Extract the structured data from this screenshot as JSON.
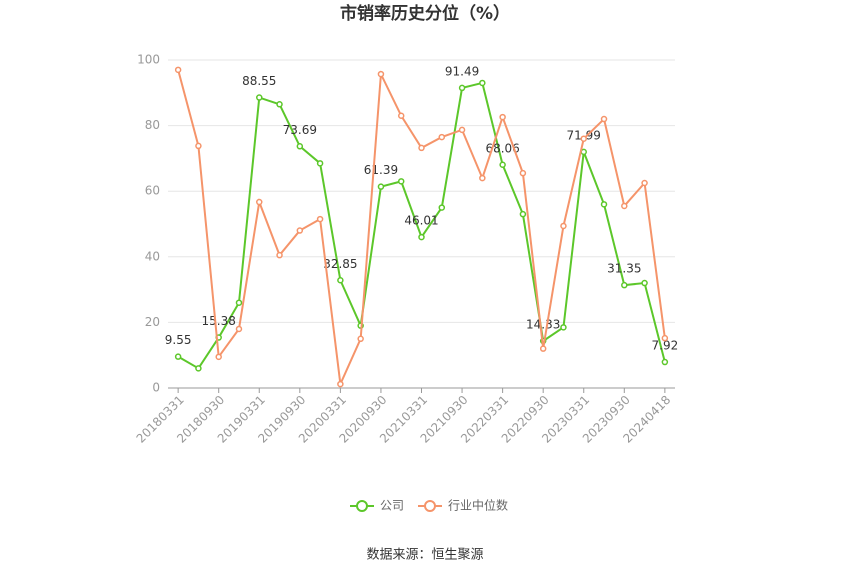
{
  "chart_data": {
    "type": "line",
    "title": "市销率历史分位（%）",
    "source": "数据来源：恒生聚源",
    "categories": [
      "20180331",
      null,
      "20180930",
      null,
      "20190331",
      null,
      "20190930",
      null,
      "20200331",
      null,
      "20200930",
      null,
      "20210331",
      null,
      "20210930",
      null,
      "20220331",
      null,
      "20220930",
      null,
      "20230331",
      null,
      "20230930",
      null,
      "20240418"
    ],
    "series": [
      {
        "name": "公司",
        "color": "#5cc72a",
        "values": [
          9.55,
          6,
          15.38,
          26,
          88.55,
          86.5,
          73.69,
          68.5,
          32.85,
          19,
          61.39,
          63,
          46.01,
          55,
          91.49,
          93,
          68.06,
          53,
          14.33,
          18.5,
          71.99,
          56,
          31.35,
          32,
          7.92
        ]
      },
      {
        "name": "行业中位数",
        "color": "#f5946a",
        "values": [
          97,
          73.8,
          9.5,
          18,
          56.7,
          40.5,
          48,
          51.5,
          1.2,
          15,
          95.7,
          83,
          73.2,
          76.5,
          78.7,
          64,
          82.6,
          65.5,
          12,
          49.4,
          76,
          82,
          55.5,
          62.5,
          15.2
        ]
      }
    ],
    "ylim": [
      0,
      100
    ],
    "yticks": [
      0,
      20,
      40,
      60,
      80,
      100
    ],
    "grid": true,
    "legend": "bottom"
  }
}
